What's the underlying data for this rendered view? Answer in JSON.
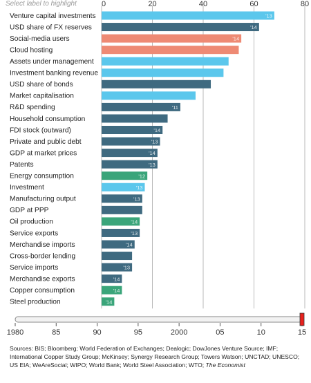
{
  "hint": "Select label to highlight",
  "colors": {
    "dark": "#3f6a80",
    "light": "#5bc7ec",
    "salmon": "#ee8a74",
    "green": "#3aa57a",
    "grid": "#a9a9a9",
    "axis": "#555555",
    "slider_handle": "#e8211d"
  },
  "chart_data": {
    "type": "bar",
    "orientation": "horizontal",
    "xlim": [
      0,
      80
    ],
    "x_ticks": [
      "0",
      "20",
      "40",
      "60",
      "80"
    ],
    "grid": true,
    "categories": [
      "Venture capital investments",
      "USD share of FX reserves",
      "Social-media users",
      "Cloud hosting",
      "Assets under management",
      "Investment banking revenue",
      "USD share of bonds",
      "Market capitalisation",
      "R&D spending",
      "Household consumption",
      "FDI stock (outward)",
      "Private and public debt",
      "GDP at market prices",
      "Patents",
      "Energy consumption",
      "Investment",
      "Manufacturing output",
      "GDP at PPP",
      "Oil production",
      "Service exports",
      "Merchandise imports",
      "Cross-border lending",
      "Service imports",
      "Merchandise exports",
      "Copper consumption",
      "Steel production"
    ],
    "values": [
      68,
      62,
      55,
      54,
      50,
      48,
      43,
      37,
      31,
      26,
      24,
      23,
      22,
      22,
      18,
      17,
      16,
      16,
      15,
      15,
      13,
      12,
      12,
      8,
      8,
      5
    ],
    "years": [
      "'13",
      "'14",
      "'14",
      "",
      "",
      "",
      "",
      "",
      "'11",
      "",
      "'14",
      "'13",
      "'14",
      "'13",
      "'12",
      "'13",
      "'13",
      "",
      "'14",
      "'13",
      "'14",
      "",
      "'13",
      "'14",
      "'14",
      "'14"
    ],
    "color_keys": [
      "light",
      "dark",
      "salmon",
      "salmon",
      "light",
      "light",
      "dark",
      "light",
      "dark",
      "dark",
      "dark",
      "dark",
      "dark",
      "dark",
      "green",
      "light",
      "dark",
      "dark",
      "green",
      "dark",
      "dark",
      "dark",
      "dark",
      "dark",
      "green",
      "green"
    ]
  },
  "timeline": {
    "ticks": [
      "1980",
      "85",
      "90",
      "95",
      "2000",
      "05",
      "10",
      "15"
    ],
    "selected": "15"
  },
  "sources": {
    "text": "Sources: BIS; Bloomberg; World Federation of Exchanges; Dealogic; DowJones Venture Source; IMF; International Copper Study Group; McKinsey; Synergy Research Group; Towers Watson; UNCTAD; UNESCO; US EIA; WeAreSocial; WIPO; World Bank; World Steel Association; WTO;",
    "publisher": "The Economist"
  }
}
